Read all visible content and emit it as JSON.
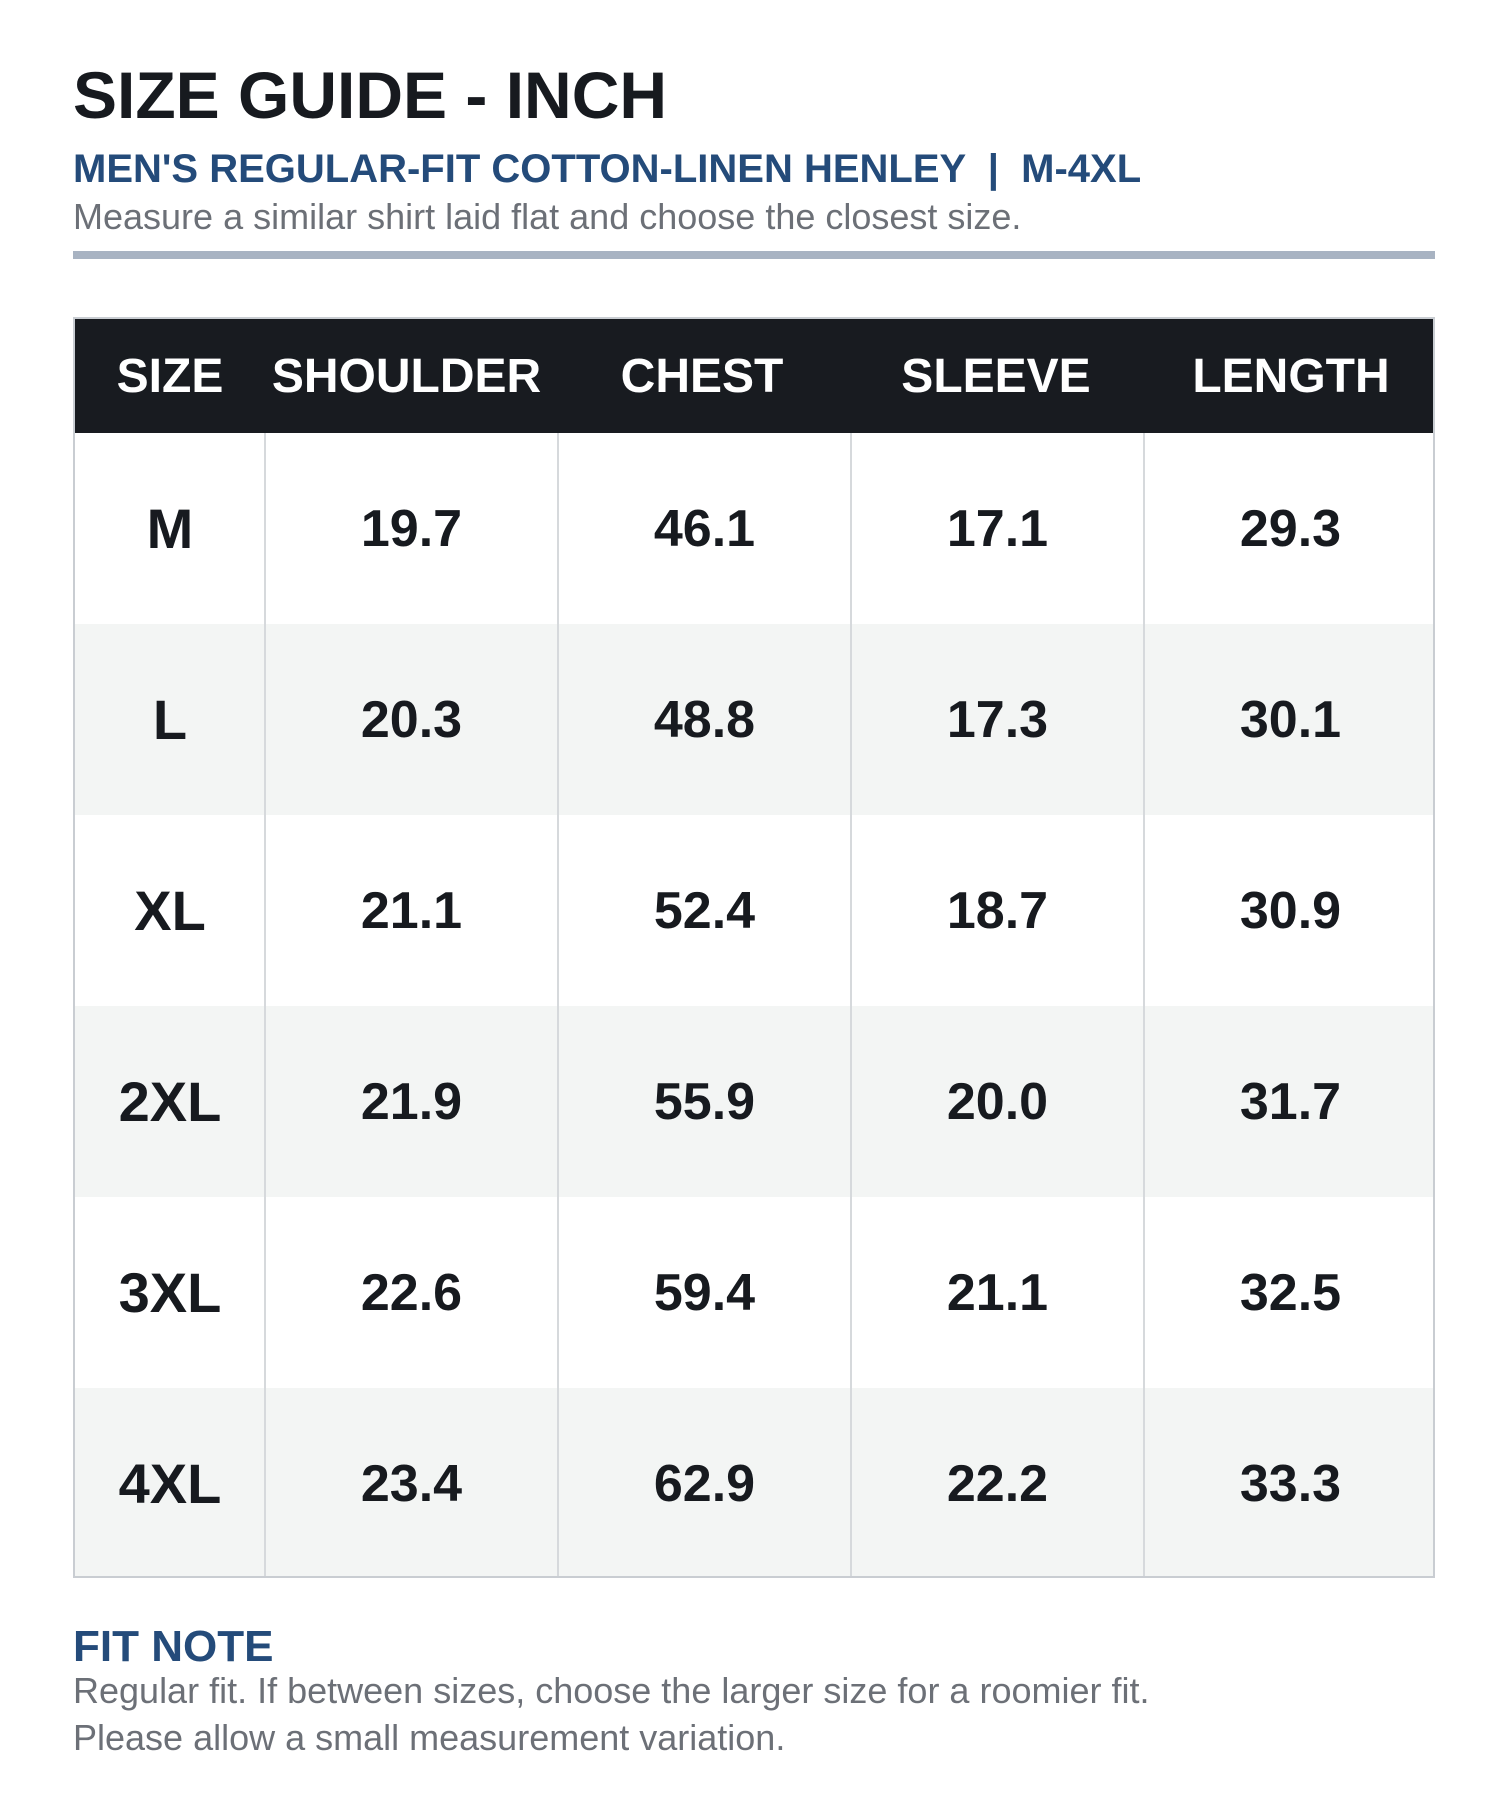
{
  "header": {
    "title": "SIZE GUIDE - INCH",
    "subtitle": "MEN'S REGULAR-FIT COTTON-LINEN HENLEY  |  M-4XL",
    "instruction": "Measure a similar shirt laid flat and choose the closest size."
  },
  "table": {
    "columns": [
      "SIZE",
      "SHOULDER",
      "CHEST",
      "SLEEVE",
      "LENGTH"
    ],
    "rows": [
      [
        "M",
        "19.7",
        "46.1",
        "17.1",
        "29.3"
      ],
      [
        "L",
        "20.3",
        "48.8",
        "17.3",
        "30.1"
      ],
      [
        "XL",
        "21.1",
        "52.4",
        "18.7",
        "30.9"
      ],
      [
        "2XL",
        "21.9",
        "55.9",
        "20.0",
        "31.7"
      ],
      [
        "3XL",
        "22.6",
        "59.4",
        "21.1",
        "32.5"
      ],
      [
        "4XL",
        "23.4",
        "62.9",
        "22.2",
        "33.3"
      ]
    ]
  },
  "fit_note": {
    "title": "FIT NOTE",
    "lines": [
      "Regular fit. If between sizes, choose the larger size for a roomier fit.",
      "Please allow a small measurement variation."
    ]
  },
  "colors": {
    "accent_blue": "#244b7a",
    "header_background": "#181b20",
    "divider": "#a8b3c2",
    "alternate_row": "#f3f5f4",
    "body_text": "#171a1f",
    "secondary_text": "#6c7077"
  }
}
